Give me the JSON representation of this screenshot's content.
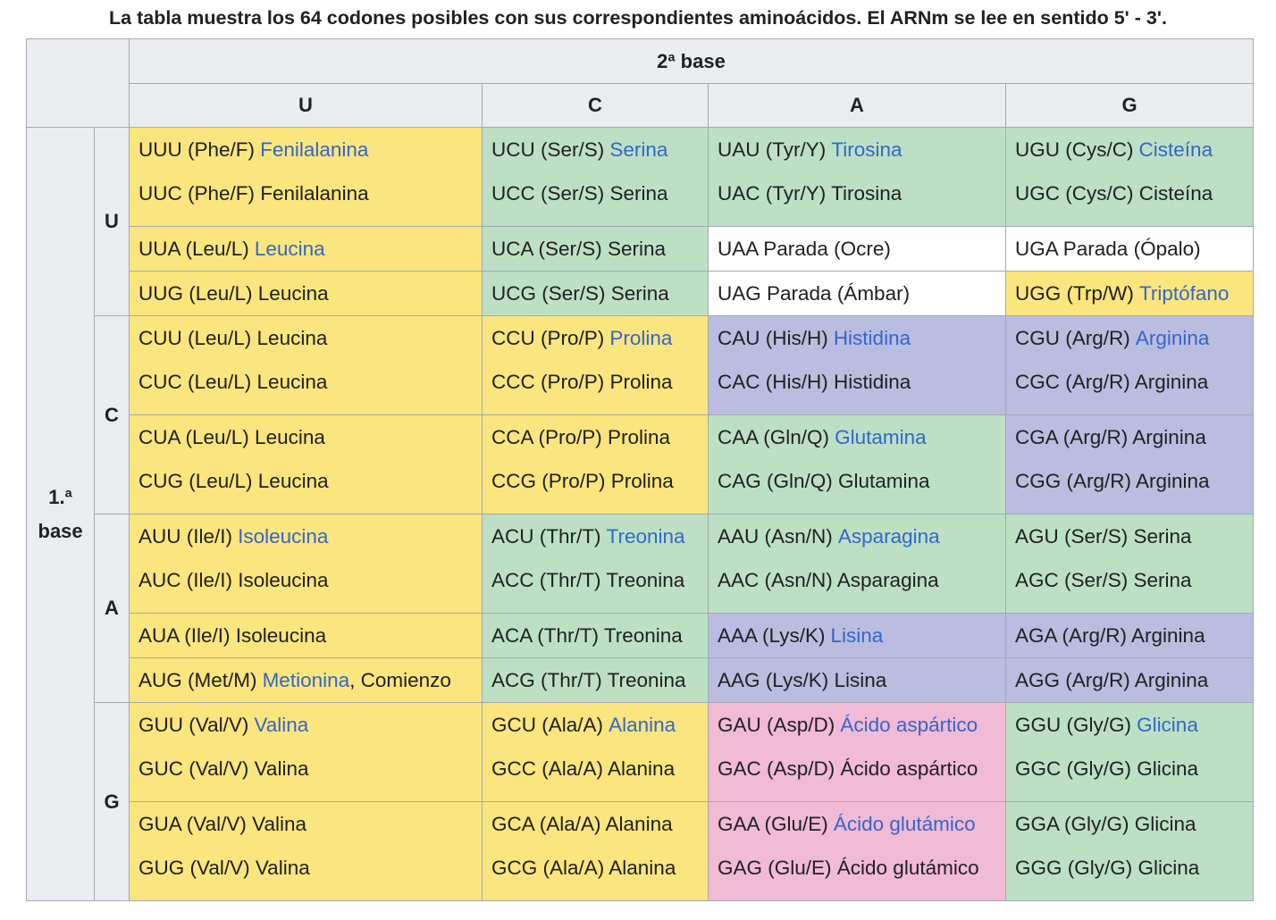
{
  "caption": "La tabla muestra los 64 codones posibles con sus correspondientes aminoácidos. El ARNm se lee en sentido 5' - 3'.",
  "header": {
    "second_base": "2ª base",
    "first_base": "1.ª base",
    "columns": [
      "U",
      "C",
      "A",
      "G"
    ]
  },
  "rows": [
    {
      "base": "U",
      "segments": [
        {
          "cells": [
            {
              "color": "#fbe57e",
              "lines": [
                {
                  "text": "UUU (Phe/F)",
                  "link": "Fenilalanina"
                },
                {
                  "text": "UUC (Phe/F) Fenilalanina"
                }
              ]
            },
            {
              "color": "#bde0c5",
              "lines": [
                {
                  "text": "UCU (Ser/S)",
                  "link": "Serina"
                },
                {
                  "text": "UCC (Ser/S) Serina"
                }
              ]
            },
            {
              "color": "#bde0c5",
              "lines": [
                {
                  "text": "UAU (Tyr/Y)",
                  "link": "Tirosina"
                },
                {
                  "text": "UAC (Tyr/Y) Tirosina"
                }
              ]
            },
            {
              "color": "#bde0c5",
              "lines": [
                {
                  "text": "UGU (Cys/C)",
                  "link": "Cisteína"
                },
                {
                  "text": "UGC (Cys/C) Cisteína"
                }
              ]
            }
          ]
        },
        {
          "cells": [
            {
              "color": "#fbe57e",
              "lines": [
                {
                  "text": "UUA (Leu/L)",
                  "link": "Leucina"
                }
              ]
            },
            {
              "color": "#bde0c5",
              "lines": [
                {
                  "text": "UCA (Ser/S) Serina"
                }
              ]
            },
            {
              "color": "#ffffff",
              "lines": [
                {
                  "text": "UAA Parada (Ocre)"
                }
              ]
            },
            {
              "color": "#ffffff",
              "lines": [
                {
                  "text": "UGA Parada (Ópalo)"
                }
              ]
            }
          ]
        },
        {
          "cells": [
            {
              "color": "#fbe57e",
              "lines": [
                {
                  "text": "UUG (Leu/L) Leucina"
                }
              ]
            },
            {
              "color": "#bde0c5",
              "lines": [
                {
                  "text": "UCG (Ser/S) Serina"
                }
              ]
            },
            {
              "color": "#ffffff",
              "lines": [
                {
                  "text": "UAG Parada (Ámbar)"
                }
              ]
            },
            {
              "color": "#fbe57e",
              "lines": [
                {
                  "text": "UGG (Trp/W)",
                  "link": "Triptófano"
                }
              ]
            }
          ]
        }
      ]
    },
    {
      "base": "C",
      "segments": [
        {
          "cells": [
            {
              "color": "#fbe57e",
              "lines": [
                {
                  "text": "CUU (Leu/L) Leucina"
                },
                {
                  "text": "CUC (Leu/L) Leucina"
                }
              ]
            },
            {
              "color": "#fbe57e",
              "lines": [
                {
                  "text": "CCU (Pro/P)",
                  "link": "Prolina"
                },
                {
                  "text": "CCC (Pro/P) Prolina"
                }
              ]
            },
            {
              "color": "#babde0",
              "lines": [
                {
                  "text": "CAU (His/H)",
                  "link": "Histidina"
                },
                {
                  "text": "CAC (His/H) Histidina"
                }
              ]
            },
            {
              "color": "#babde0",
              "lines": [
                {
                  "text": "CGU (Arg/R)",
                  "link": "Arginina"
                },
                {
                  "text": "CGC (Arg/R) Arginina"
                }
              ]
            }
          ]
        },
        {
          "cells": [
            {
              "color": "#fbe57e",
              "lines": [
                {
                  "text": "CUA (Leu/L) Leucina"
                },
                {
                  "text": "CUG (Leu/L) Leucina"
                }
              ]
            },
            {
              "color": "#fbe57e",
              "lines": [
                {
                  "text": "CCA (Pro/P) Prolina"
                },
                {
                  "text": "CCG (Pro/P) Prolina"
                }
              ]
            },
            {
              "color": "#bde0c5",
              "lines": [
                {
                  "text": "CAA (Gln/Q)",
                  "link": "Glutamina"
                },
                {
                  "text": "CAG (Gln/Q) Glutamina"
                }
              ]
            },
            {
              "color": "#babde0",
              "lines": [
                {
                  "text": "CGA (Arg/R) Arginina"
                },
                {
                  "text": "CGG (Arg/R) Arginina"
                }
              ]
            }
          ]
        }
      ]
    },
    {
      "base": "A",
      "segments": [
        {
          "cells": [
            {
              "color": "#fbe57e",
              "lines": [
                {
                  "text": "AUU (Ile/I)",
                  "link": "Isoleucina"
                },
                {
                  "text": "AUC (Ile/I) Isoleucina"
                }
              ]
            },
            {
              "color": "#bde0c5",
              "lines": [
                {
                  "text": "ACU (Thr/T)",
                  "link": "Treonina"
                },
                {
                  "text": "ACC (Thr/T) Treonina"
                }
              ]
            },
            {
              "color": "#bde0c5",
              "lines": [
                {
                  "text": "AAU (Asn/N)",
                  "link": "Asparagina"
                },
                {
                  "text": "AAC (Asn/N) Asparagina"
                }
              ]
            },
            {
              "color": "#bde0c5",
              "lines": [
                {
                  "text": "AGU (Ser/S) Serina"
                },
                {
                  "text": "AGC (Ser/S) Serina"
                }
              ]
            }
          ]
        },
        {
          "cells": [
            {
              "color": "#fbe57e",
              "lines": [
                {
                  "text": "AUA (Ile/I) Isoleucina"
                }
              ]
            },
            {
              "color": "#bde0c5",
              "lines": [
                {
                  "text": "ACA (Thr/T) Treonina"
                }
              ]
            },
            {
              "color": "#babde0",
              "lines": [
                {
                  "text": "AAA (Lys/K)",
                  "link": "Lisina"
                }
              ]
            },
            {
              "color": "#babde0",
              "lines": [
                {
                  "text": "AGA (Arg/R) Arginina"
                }
              ]
            }
          ]
        },
        {
          "cells": [
            {
              "color": "#fbe57e",
              "lines": [
                {
                  "text": "AUG (Met/M)",
                  "link": "Metionina",
                  "after": ", Comienzo"
                }
              ]
            },
            {
              "color": "#bde0c5",
              "lines": [
                {
                  "text": "ACG (Thr/T) Treonina"
                }
              ]
            },
            {
              "color": "#babde0",
              "lines": [
                {
                  "text": "AAG (Lys/K) Lisina"
                }
              ]
            },
            {
              "color": "#babde0",
              "lines": [
                {
                  "text": "AGG (Arg/R) Arginina"
                }
              ]
            }
          ]
        }
      ]
    },
    {
      "base": "G",
      "segments": [
        {
          "cells": [
            {
              "color": "#fbe57e",
              "lines": [
                {
                  "text": "GUU (Val/V)",
                  "link": "Valina"
                },
                {
                  "text": "GUC (Val/V) Valina"
                }
              ]
            },
            {
              "color": "#fbe57e",
              "lines": [
                {
                  "text": "GCU (Ala/A)",
                  "link": "Alanina"
                },
                {
                  "text": "GCC (Ala/A) Alanina"
                }
              ]
            },
            {
              "color": "#f1bad5",
              "lines": [
                {
                  "text": "GAU (Asp/D)",
                  "link": "Ácido aspártico"
                },
                {
                  "text": "GAC (Asp/D) Ácido aspártico"
                }
              ]
            },
            {
              "color": "#bde0c5",
              "lines": [
                {
                  "text": "GGU (Gly/G)",
                  "link": "Glicina"
                },
                {
                  "text": "GGC (Gly/G) Glicina"
                }
              ]
            }
          ]
        },
        {
          "cells": [
            {
              "color": "#fbe57e",
              "lines": [
                {
                  "text": "GUA (Val/V) Valina"
                },
                {
                  "text": "GUG (Val/V) Valina"
                }
              ]
            },
            {
              "color": "#fbe57e",
              "lines": [
                {
                  "text": "GCA (Ala/A) Alanina"
                },
                {
                  "text": "GCG (Ala/A) Alanina"
                }
              ]
            },
            {
              "color": "#f1bad5",
              "lines": [
                {
                  "text": "GAA (Glu/E)",
                  "link": "Ácido glutámico"
                },
                {
                  "text": "GAG (Glu/E) Ácido glutámico"
                }
              ]
            },
            {
              "color": "#bde0c5",
              "lines": [
                {
                  "text": "GGA (Gly/G) Glicina"
                },
                {
                  "text": "GGG (Gly/G) Glicina"
                }
              ]
            }
          ]
        }
      ]
    }
  ]
}
